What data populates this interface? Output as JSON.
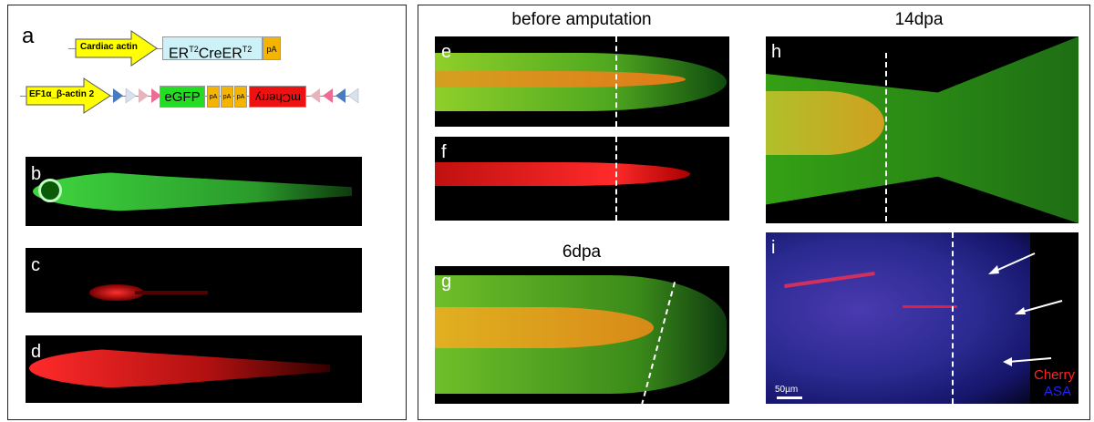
{
  "panels": {
    "a": "a",
    "b": "b",
    "c": "c",
    "d": "d",
    "e": "e",
    "f": "f",
    "g": "g",
    "h": "h",
    "i": "i"
  },
  "titles": {
    "before": "before amputation",
    "dpa6": "6dpa",
    "dpa14": "14dpa"
  },
  "construct1": {
    "promoter": "Cardiac actin",
    "gene_base": "ER",
    "gene_sup1": "T2",
    "gene_mid": "CreER",
    "gene_sup2": "T2",
    "pa": "pA"
  },
  "construct2": {
    "promoter": "EF1α_β-actin 2",
    "egfp": "eGFP",
    "pa1": "pA",
    "pa2": "pA",
    "pa3": "pA",
    "mcherry": "mCherry"
  },
  "legend": {
    "cherry": "Cherry",
    "asa": "ASA",
    "scale": "50µm"
  },
  "colors": {
    "promoter": "#ffff00",
    "cre": "#ccf2f7",
    "pa": "#f5b400",
    "egfp": "#22dd22",
    "mcherry": "#ee1111",
    "legend_cherry": "#ff2222",
    "legend_asa": "#2222ff"
  }
}
